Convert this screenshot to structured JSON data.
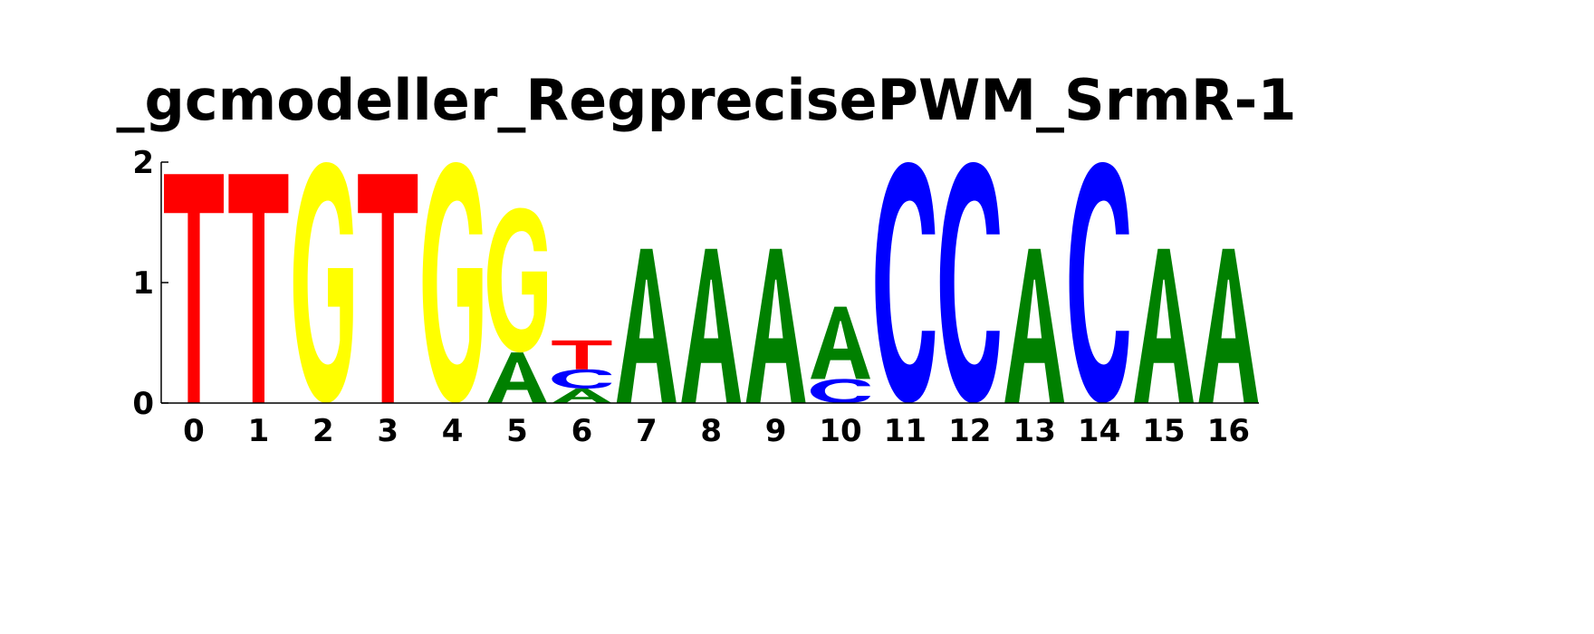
{
  "chart_data": {
    "type": "sequence-logo",
    "title": "_gcmodeller_RegprecisePWM_SrmR-1",
    "xlabel": "",
    "ylabel": "",
    "ylim": [
      0,
      2
    ],
    "yticks": [
      "0",
      "1",
      "2"
    ],
    "colors": {
      "A": "#008000",
      "C": "#0000ff",
      "G": "#ffff00",
      "T": "#ff0000"
    },
    "positions": [
      {
        "label": "0",
        "letters": [
          {
            "base": "T",
            "height": 1.9
          }
        ]
      },
      {
        "label": "1",
        "letters": [
          {
            "base": "T",
            "height": 1.9
          }
        ]
      },
      {
        "label": "2",
        "letters": [
          {
            "base": "G",
            "height": 2.0
          }
        ]
      },
      {
        "label": "3",
        "letters": [
          {
            "base": "T",
            "height": 1.9
          }
        ]
      },
      {
        "label": "4",
        "letters": [
          {
            "base": "G",
            "height": 2.0
          }
        ]
      },
      {
        "label": "5",
        "letters": [
          {
            "base": "A",
            "height": 0.42
          },
          {
            "base": "G",
            "height": 1.2
          }
        ]
      },
      {
        "label": "6",
        "letters": [
          {
            "base": "A",
            "height": 0.12
          },
          {
            "base": "C",
            "height": 0.16
          },
          {
            "base": "T",
            "height": 0.24
          }
        ]
      },
      {
        "label": "7",
        "letters": [
          {
            "base": "A",
            "height": 1.28
          }
        ]
      },
      {
        "label": "8",
        "letters": [
          {
            "base": "A",
            "height": 1.28
          }
        ]
      },
      {
        "label": "9",
        "letters": [
          {
            "base": "A",
            "height": 1.28
          }
        ]
      },
      {
        "label": "10",
        "letters": [
          {
            "base": "C",
            "height": 0.2
          },
          {
            "base": "A",
            "height": 0.6
          }
        ]
      },
      {
        "label": "11",
        "letters": [
          {
            "base": "C",
            "height": 2.0
          }
        ]
      },
      {
        "label": "12",
        "letters": [
          {
            "base": "C",
            "height": 2.0
          }
        ]
      },
      {
        "label": "13",
        "letters": [
          {
            "base": "A",
            "height": 1.28
          }
        ]
      },
      {
        "label": "14",
        "letters": [
          {
            "base": "C",
            "height": 2.0
          }
        ]
      },
      {
        "label": "15",
        "letters": [
          {
            "base": "A",
            "height": 1.28
          }
        ]
      },
      {
        "label": "16",
        "letters": [
          {
            "base": "A",
            "height": 1.28
          }
        ]
      }
    ]
  }
}
